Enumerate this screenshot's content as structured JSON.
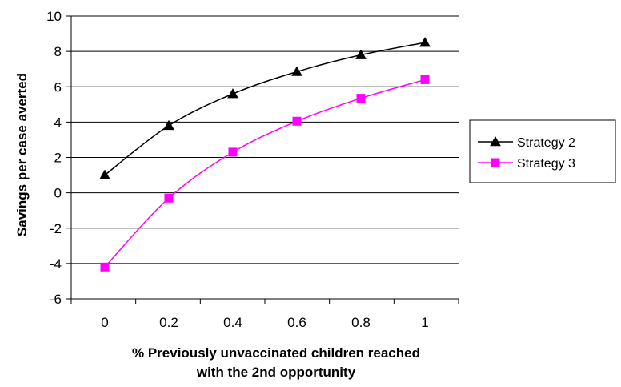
{
  "chart_data": {
    "type": "line",
    "title": "",
    "xlabel_lines": [
      "% Previously unvaccinated children reached",
      "with the 2nd opportunity"
    ],
    "ylabel": "Savings per case averted",
    "x": [
      0,
      0.2,
      0.4,
      0.6,
      0.8,
      1
    ],
    "x_tick_labels": [
      "0",
      "0.2",
      "0.4",
      "0.6",
      "0.8",
      "1"
    ],
    "y_ticks": [
      10,
      8,
      6,
      4,
      2,
      0,
      -2,
      -4,
      -6
    ],
    "ylim": [
      -6,
      10
    ],
    "grid": "horizontal",
    "legend_position": "right",
    "series": [
      {
        "name": "Strategy 2",
        "marker": "triangle",
        "color": "#000000",
        "values": [
          1.0,
          3.8,
          5.6,
          6.85,
          7.8,
          8.5
        ]
      },
      {
        "name": "Strategy 3",
        "marker": "square",
        "color": "#ff00ff",
        "values": [
          -4.2,
          -0.3,
          2.3,
          4.05,
          5.35,
          6.4
        ]
      }
    ]
  }
}
